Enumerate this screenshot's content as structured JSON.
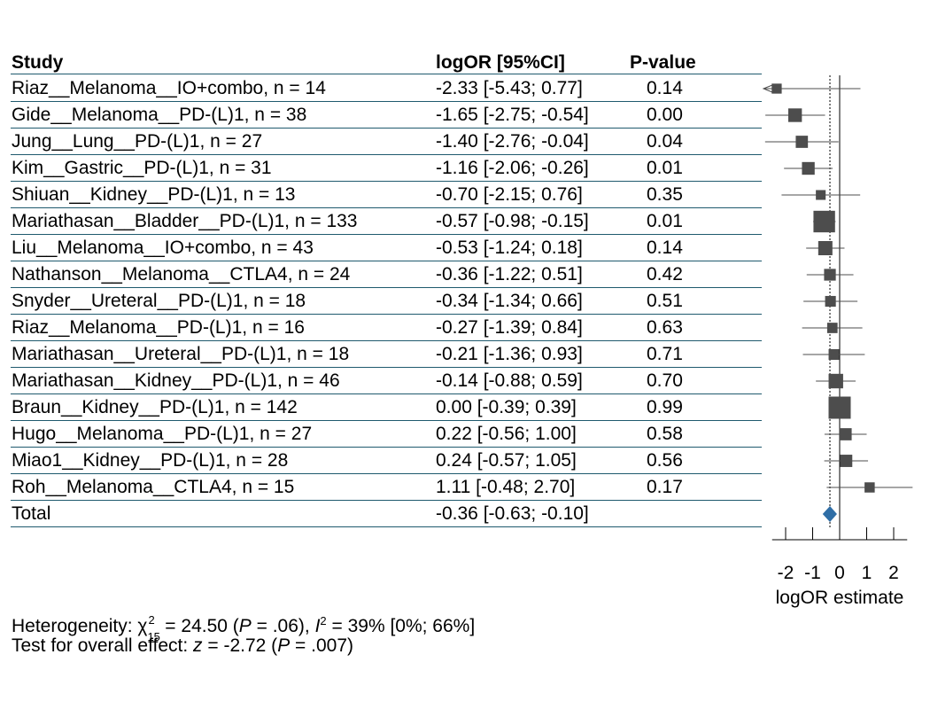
{
  "headers": {
    "study": "Study",
    "estimate": "logOR [95%CI]",
    "pvalue": "P-value"
  },
  "chart_data": {
    "type": "forest",
    "xlabel": "logOR estimate",
    "xticks": [
      -2,
      -1,
      0,
      1,
      2
    ],
    "xtick_labels": [
      "-2",
      "-1",
      "0",
      "1",
      "2"
    ],
    "xlim": [
      -2.5,
      2.5
    ],
    "reference_line": 0,
    "summary_line": -0.36,
    "studies": [
      {
        "label": "Riaz__Melanoma__IO+combo, n = 14",
        "est": -2.33,
        "lo": -5.43,
        "hi": 0.77,
        "ci_text": "-2.33 [-5.43;  0.77]",
        "p": "0.14",
        "n": 14
      },
      {
        "label": "Gide__Melanoma__PD-(L)1, n = 38",
        "est": -1.65,
        "lo": -2.75,
        "hi": -0.54,
        "ci_text": "-1.65 [-2.75; -0.54]",
        "p": "0.00",
        "n": 38
      },
      {
        "label": "Jung__Lung__PD-(L)1, n = 27",
        "est": -1.4,
        "lo": -2.76,
        "hi": -0.04,
        "ci_text": "-1.40 [-2.76; -0.04]",
        "p": "0.04",
        "n": 27
      },
      {
        "label": "Kim__Gastric__PD-(L)1, n = 31",
        "est": -1.16,
        "lo": -2.06,
        "hi": -0.26,
        "ci_text": "-1.16 [-2.06; -0.26]",
        "p": "0.01",
        "n": 31
      },
      {
        "label": "Shiuan__Kidney__PD-(L)1, n = 13",
        "est": -0.7,
        "lo": -2.15,
        "hi": 0.76,
        "ci_text": "-0.70 [-2.15;  0.76]",
        "p": "0.35",
        "n": 13
      },
      {
        "label": "Mariathasan__Bladder__PD-(L)1, n = 133",
        "est": -0.57,
        "lo": -0.98,
        "hi": -0.15,
        "ci_text": "-0.57 [-0.98; -0.15]",
        "p": "0.01",
        "n": 133
      },
      {
        "label": "Liu__Melanoma__IO+combo, n = 43",
        "est": -0.53,
        "lo": -1.24,
        "hi": 0.18,
        "ci_text": "-0.53 [-1.24;  0.18]",
        "p": "0.14",
        "n": 43
      },
      {
        "label": "Nathanson__Melanoma__CTLA4, n = 24",
        "est": -0.36,
        "lo": -1.22,
        "hi": 0.51,
        "ci_text": "-0.36 [-1.22;  0.51]",
        "p": "0.42",
        "n": 24
      },
      {
        "label": "Snyder__Ureteral__PD-(L)1, n = 18",
        "est": -0.34,
        "lo": -1.34,
        "hi": 0.66,
        "ci_text": "-0.34 [-1.34;  0.66]",
        "p": "0.51",
        "n": 18
      },
      {
        "label": "Riaz__Melanoma__PD-(L)1, n = 16",
        "est": -0.27,
        "lo": -1.39,
        "hi": 0.84,
        "ci_text": "-0.27 [-1.39;  0.84]",
        "p": "0.63",
        "n": 16
      },
      {
        "label": "Mariathasan__Ureteral__PD-(L)1, n = 18",
        "est": -0.21,
        "lo": -1.36,
        "hi": 0.93,
        "ci_text": "-0.21 [-1.36;  0.93]",
        "p": "0.71",
        "n": 18
      },
      {
        "label": "Mariathasan__Kidney__PD-(L)1, n = 46",
        "est": -0.14,
        "lo": -0.88,
        "hi": 0.59,
        "ci_text": "-0.14 [-0.88;  0.59]",
        "p": "0.70",
        "n": 46
      },
      {
        "label": "Braun__Kidney__PD-(L)1, n = 142",
        "est": 0.0,
        "lo": -0.39,
        "hi": 0.39,
        "ci_text": "0.00 [-0.39;  0.39]",
        "p": "0.99",
        "n": 142
      },
      {
        "label": "Hugo__Melanoma__PD-(L)1, n = 27",
        "est": 0.22,
        "lo": -0.56,
        "hi": 1.0,
        "ci_text": "0.22 [-0.56;  1.00]",
        "p": "0.58",
        "n": 27
      },
      {
        "label": "Miao1__Kidney__PD-(L)1, n = 28",
        "est": 0.24,
        "lo": -0.57,
        "hi": 1.05,
        "ci_text": "0.24 [-0.57;  1.05]",
        "p": "0.56",
        "n": 28
      },
      {
        "label": "Roh__Melanoma__CTLA4, n = 15",
        "est": 1.11,
        "lo": -0.48,
        "hi": 2.7,
        "ci_text": "1.11 [-0.48;  2.70]",
        "p": "0.17",
        "n": 15
      }
    ],
    "total": {
      "label": "Total",
      "est": -0.36,
      "lo": -0.63,
      "hi": -0.1,
      "ci_text": "-0.36 [-0.63; -0.10]"
    },
    "colors": {
      "square": "#4d4d4d",
      "diamond": "#2f6ea6",
      "ci_line": "#4d4d4d",
      "row_rule": "#1f5a6e"
    }
  },
  "heterogeneity": {
    "prefix": "Heterogeneity: ",
    "chi": "χ",
    "chi_sup": "2",
    "chi_sub": "15",
    "part1": " = 24.50 (",
    "p_sym": "P",
    "part2": " = .06), ",
    "i_sym": "I",
    "i_sup": "2",
    "part3": " = 39% [0%; 66%]"
  },
  "overall": {
    "prefix": "Test for overall effect: ",
    "z_sym": "z",
    "part1": " = -2.72 (",
    "p_sym": "P",
    "part2": " = .007)"
  }
}
